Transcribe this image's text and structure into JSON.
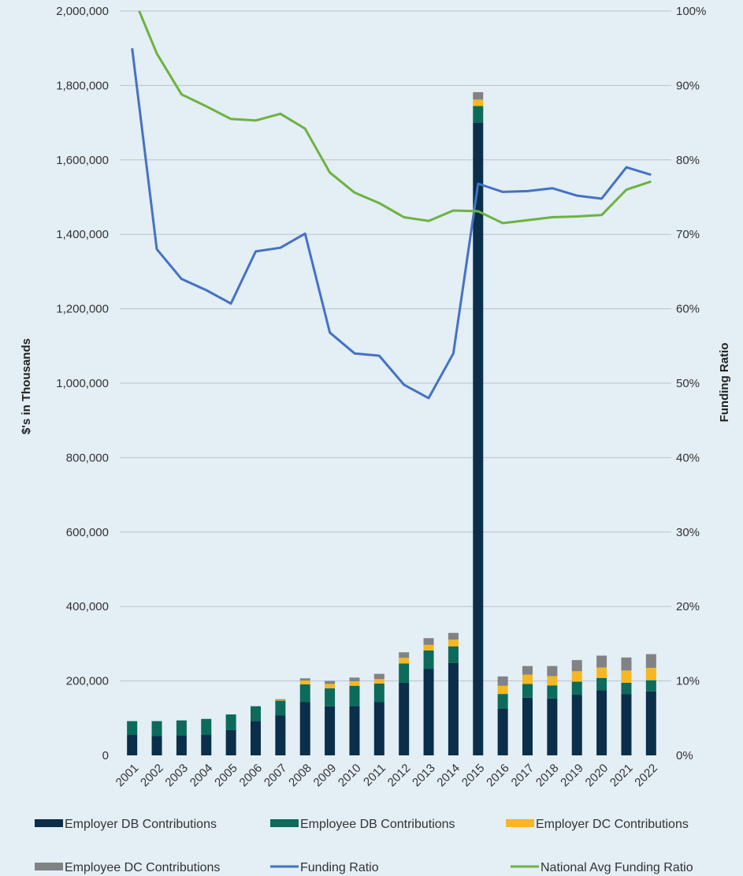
{
  "chart_data": {
    "type": "bar",
    "categories": [
      "2001",
      "2002",
      "2003",
      "2004",
      "2005",
      "2006",
      "2007",
      "2008",
      "2009",
      "2010",
      "2011",
      "2012",
      "2013",
      "2014",
      "2015",
      "2016",
      "2017",
      "2018",
      "2019",
      "2020",
      "2021",
      "2022"
    ],
    "series": [
      {
        "name": "Employer DB Contributions",
        "type": "bar",
        "axis": "left",
        "color": "#0b2e4a",
        "values": [
          55000,
          52000,
          53000,
          55000,
          68000,
          92000,
          107000,
          143000,
          132000,
          133000,
          143000,
          195000,
          232000,
          248000,
          1700000,
          125000,
          155000,
          153000,
          163000,
          175000,
          165000,
          172000
        ]
      },
      {
        "name": "Employee DB Contributions",
        "type": "bar",
        "axis": "left",
        "color": "#0c6b5a",
        "values": [
          37000,
          40000,
          41000,
          43000,
          42000,
          40000,
          40000,
          48000,
          48000,
          54000,
          50000,
          52000,
          50000,
          45000,
          45000,
          40000,
          37000,
          35000,
          35000,
          33000,
          30000,
          30000
        ]
      },
      {
        "name": "Employer DC Contributions",
        "type": "bar",
        "axis": "left",
        "color": "#f5b820",
        "values": [
          0,
          0,
          0,
          0,
          0,
          0,
          2000,
          10000,
          12000,
          12000,
          12000,
          15000,
          15000,
          18000,
          17000,
          22000,
          25000,
          25000,
          28000,
          28000,
          33000,
          33000
        ]
      },
      {
        "name": "Employee DC Contributions",
        "type": "bar",
        "axis": "left",
        "color": "#808285",
        "values": [
          0,
          0,
          0,
          0,
          0,
          0,
          2000,
          6000,
          8000,
          10000,
          14000,
          15000,
          18000,
          18000,
          20000,
          25000,
          23000,
          27000,
          30000,
          32000,
          35000,
          37000
        ]
      },
      {
        "name": "Funding Ratio",
        "type": "line",
        "axis": "right",
        "color": "#4472c4",
        "values": [
          0.95,
          0.68,
          0.64,
          0.625,
          0.607,
          0.677,
          0.682,
          0.701,
          0.568,
          0.54,
          0.537,
          0.498,
          0.48,
          0.54,
          0.768,
          0.757,
          0.758,
          0.762,
          0.752,
          0.748,
          0.79,
          0.78
        ]
      },
      {
        "name": "National Avg Funding Ratio",
        "type": "line",
        "axis": "right",
        "color": "#6db33f",
        "values": [
          1.0,
          0.943,
          0.888,
          0.872,
          0.855,
          0.853,
          0.862,
          0.842,
          0.783,
          0.756,
          0.742,
          0.723,
          0.718,
          0.732,
          0.731,
          0.715,
          0.719,
          0.723,
          0.724,
          0.726,
          0.76,
          0.771
        ]
      }
    ],
    "ylabel": "$'s in Thousands",
    "y2label": "Funding Ratio",
    "ylim": [
      0,
      2000000
    ],
    "y2lim": [
      0,
      1.0
    ],
    "yticks": [
      "0",
      "200,000",
      "400,000",
      "600,000",
      "800,000",
      "1,000,000",
      "1,200,000",
      "1,400,000",
      "1,600,000",
      "1,800,000",
      "2,000,000"
    ],
    "y2ticks": [
      "0%",
      "10%",
      "20%",
      "30%",
      "40%",
      "50%",
      "60%",
      "70%",
      "80%",
      "90%",
      "100%"
    ],
    "grid": true,
    "legend_position": "bottom"
  }
}
